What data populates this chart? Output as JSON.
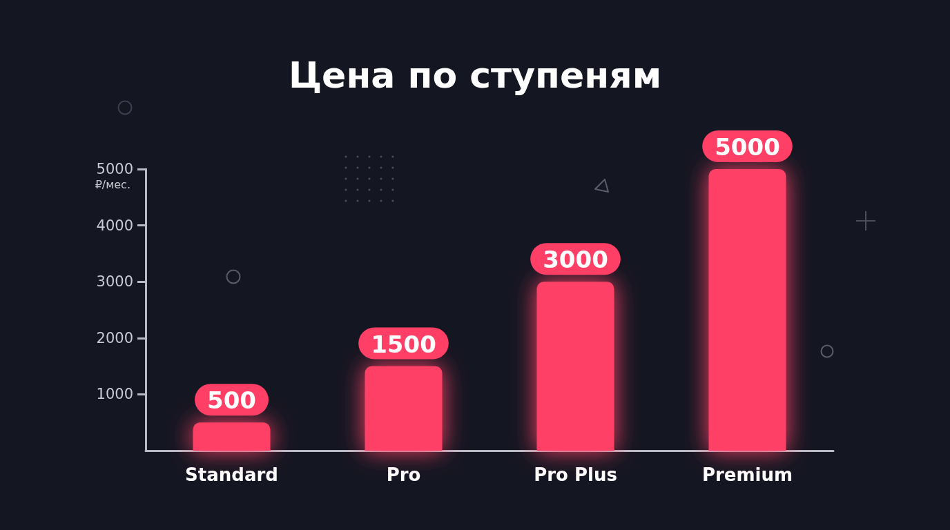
{
  "chart_data": {
    "type": "bar",
    "title": "Цена по ступеням",
    "ylabel": "₽/мес.",
    "categories": [
      "Standard",
      "Pro",
      "Pro Plus",
      "Premium"
    ],
    "values": [
      500,
      1500,
      3000,
      5000
    ],
    "color": "#ff3f66",
    "ylim": [
      0,
      5000
    ],
    "yticks": [
      1000,
      2000,
      3000,
      4000,
      5000
    ],
    "data_labels": true
  }
}
